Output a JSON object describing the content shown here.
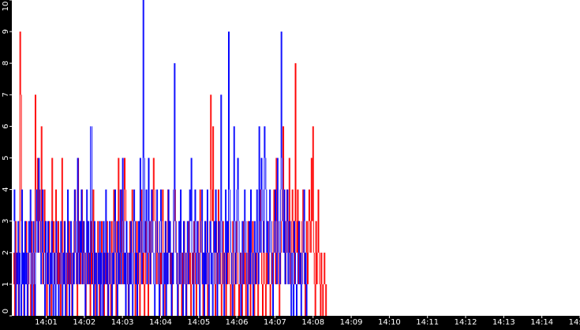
{
  "chart_data": {
    "type": "line",
    "title": "",
    "xlabel": "",
    "ylabel": "",
    "ylim": [
      0,
      10
    ],
    "y_ticks": [
      "0",
      "1",
      "2",
      "3",
      "4",
      "5",
      "6",
      "7",
      "8",
      "9",
      "10"
    ],
    "x_ticks": [
      "14:01",
      "14:02",
      "14:03",
      "14:04",
      "14:05",
      "14:06",
      "14:07",
      "14:08",
      "14:09",
      "14:10",
      "14:11",
      "14:12",
      "14:13",
      "14:14",
      "14:15"
    ],
    "x_tick_minutes": [
      1,
      2,
      3,
      4,
      5,
      6,
      7,
      8,
      9,
      10,
      11,
      12,
      13,
      14,
      15
    ],
    "x_range_minutes": [
      0.1,
      15.0
    ],
    "grid": false,
    "legend": "none",
    "colors": {
      "background": "#000000",
      "plot_background": "#ffffff",
      "text": "#ffffff",
      "series_a": "#ff0000",
      "series_b": "#0000ff"
    },
    "series": [
      {
        "color": "#ff0000",
        "x_start_minute": 0.12,
        "x_step_minutes": 0.02,
        "values": [
          1,
          2,
          0,
          3,
          1,
          2,
          1,
          0,
          2,
          9,
          7,
          3,
          1,
          2,
          0,
          1,
          2,
          3,
          1,
          0,
          2,
          1,
          1,
          0,
          3,
          2,
          1,
          0,
          2,
          7,
          4,
          3,
          5,
          2,
          4,
          3,
          2,
          6,
          3,
          1,
          2,
          4,
          2,
          1,
          0,
          2,
          1,
          3,
          2,
          1,
          0,
          5,
          2,
          3,
          1,
          2,
          4,
          2,
          1,
          3,
          1,
          2,
          0,
          1,
          5,
          2,
          1,
          3,
          2,
          1,
          0,
          2,
          1,
          3,
          1,
          2,
          1,
          0,
          2,
          1,
          3,
          4,
          2,
          1,
          0,
          5,
          2,
          3,
          1,
          2,
          4,
          1,
          3,
          2,
          1,
          0,
          2,
          3,
          1,
          2,
          1,
          0,
          3,
          1,
          2,
          4,
          1,
          2,
          0,
          1,
          2,
          3,
          1,
          0,
          2,
          1,
          3,
          2,
          1,
          0,
          1,
          2,
          1,
          3,
          0,
          1,
          2,
          1,
          0,
          3,
          2,
          1,
          4,
          2,
          1,
          0,
          3,
          2,
          5,
          3,
          1,
          2,
          4,
          2,
          1,
          3,
          5,
          4,
          3,
          2,
          1,
          0,
          2,
          3,
          1,
          2,
          4,
          3,
          2,
          1,
          0,
          2,
          3,
          1,
          2,
          1,
          0,
          3,
          4,
          2,
          1,
          2,
          0,
          1,
          3,
          2,
          1,
          0,
          2,
          3,
          1,
          2,
          4,
          3,
          5,
          4,
          3,
          2,
          1,
          3,
          2,
          1,
          0,
          2,
          1,
          3,
          4,
          2,
          1,
          0,
          3,
          2,
          1,
          4,
          2,
          3,
          1,
          2,
          0,
          1,
          2,
          3,
          4,
          3,
          2,
          1,
          0,
          1,
          2,
          3,
          1,
          0,
          2,
          1,
          3,
          2,
          1,
          0,
          1,
          2,
          3,
          1,
          2,
          0,
          1,
          2,
          1,
          3,
          2,
          1,
          0,
          2,
          3,
          1,
          2,
          4,
          3,
          2,
          1,
          0,
          2,
          1,
          3,
          2,
          1,
          0,
          1,
          2,
          3,
          7,
          4,
          3,
          6,
          2,
          1,
          0,
          3,
          2,
          1,
          4,
          3,
          2,
          1,
          0,
          2,
          3,
          1,
          2,
          1,
          0,
          2,
          1,
          3,
          2,
          1,
          0,
          1,
          2,
          3,
          1,
          0,
          2,
          1,
          3,
          2,
          1,
          0,
          1,
          2,
          1,
          0,
          2,
          3,
          1,
          2,
          0,
          1,
          2,
          3,
          1,
          2,
          0,
          1,
          2,
          3,
          1,
          0,
          2,
          1,
          2,
          1,
          0,
          2,
          3,
          4,
          2,
          1,
          0,
          3,
          2,
          1,
          0,
          2,
          1,
          3,
          2,
          1,
          0,
          1,
          2,
          1,
          3,
          4,
          2,
          1,
          5,
          3,
          2,
          1,
          0,
          1,
          2,
          3,
          4,
          6,
          2,
          3,
          1,
          2,
          4,
          3,
          2,
          5,
          1,
          2,
          3,
          4,
          2,
          3,
          1,
          8,
          3,
          2,
          4,
          1,
          3,
          2,
          1,
          2,
          3,
          4,
          2,
          1,
          0,
          2,
          3,
          1,
          2,
          4,
          3,
          2,
          5,
          3,
          6,
          2,
          1,
          0,
          3,
          1,
          2,
          4,
          2,
          1,
          0,
          2,
          1,
          0,
          1,
          2,
          1,
          0,
          1
        ],
        "color_name": "red"
      },
      {
        "color": "#0000ff",
        "x_start_minute": 0.13,
        "x_step_minutes": 0.02,
        "values": [
          3,
          4,
          1,
          0,
          2,
          1,
          3,
          0,
          2,
          1,
          0,
          4,
          1,
          2,
          0,
          3,
          1,
          2,
          0,
          1,
          3,
          2,
          4,
          1,
          0,
          2,
          3,
          1,
          0,
          2,
          4,
          3,
          2,
          5,
          4,
          3,
          1,
          2,
          4,
          2,
          1,
          0,
          3,
          2,
          1,
          3,
          1,
          0,
          2,
          1,
          3,
          1,
          0,
          2,
          1,
          0,
          3,
          2,
          1,
          0,
          1,
          2,
          3,
          1,
          0,
          2,
          1,
          3,
          0,
          1,
          2,
          4,
          1,
          0,
          2,
          3,
          1,
          0,
          2,
          1,
          4,
          3,
          2,
          1,
          5,
          2,
          1,
          3,
          2,
          4,
          1,
          2,
          3,
          1,
          0,
          2,
          4,
          1,
          3,
          2,
          1,
          6,
          6,
          2,
          1,
          0,
          3,
          1,
          2,
          0,
          1,
          2,
          1,
          3,
          0,
          2,
          1,
          0,
          3,
          1,
          2,
          4,
          1,
          2,
          0,
          1,
          3,
          2,
          1,
          0,
          2,
          1,
          3,
          4,
          2,
          1,
          0,
          3,
          1,
          2,
          4,
          1,
          2,
          5,
          3,
          1,
          2,
          0,
          3,
          2,
          1,
          0,
          2,
          1,
          3,
          1,
          0,
          2,
          4,
          3,
          1,
          2,
          0,
          1,
          3,
          2,
          5,
          3,
          1,
          2,
          10,
          5,
          2,
          3,
          4,
          1,
          2,
          5,
          3,
          1,
          2,
          4,
          3,
          2,
          1,
          0,
          2,
          3,
          4,
          2,
          1,
          0,
          3,
          4,
          2,
          1,
          0,
          2,
          1,
          3,
          0,
          2,
          1,
          4,
          2,
          3,
          1,
          0,
          2,
          1,
          4,
          8,
          3,
          2,
          1,
          0,
          2,
          3,
          1,
          4,
          2,
          1,
          0,
          3,
          2,
          1,
          0,
          2,
          3,
          1,
          2,
          4,
          3,
          5,
          2,
          1,
          0,
          3,
          4,
          2,
          1,
          3,
          2,
          1,
          0,
          2,
          3,
          4,
          1,
          2,
          0,
          3,
          1,
          2,
          4,
          1,
          0,
          2,
          3,
          1,
          2,
          0,
          1,
          3,
          2,
          4,
          1,
          0,
          2,
          3,
          1,
          2,
          7,
          3,
          2,
          1,
          0,
          2,
          4,
          1,
          3,
          2,
          9,
          4,
          3,
          2,
          1,
          0,
          2,
          6,
          3,
          1,
          2,
          4,
          5,
          3,
          2,
          1,
          0,
          2,
          3,
          1,
          2,
          4,
          3,
          2,
          1,
          0,
          2,
          3,
          1,
          4,
          2,
          1,
          0,
          2,
          3,
          1,
          2,
          4,
          2,
          1,
          6,
          3,
          2,
          5,
          4,
          3,
          2,
          6,
          5,
          4,
          2,
          3,
          1,
          2,
          4,
          3,
          2,
          1,
          0,
          2,
          3,
          4,
          2,
          1,
          5,
          3,
          2,
          1,
          4,
          9,
          5,
          3,
          2,
          4,
          1,
          2,
          3,
          4,
          1,
          2,
          3,
          1,
          0,
          2,
          1,
          0,
          3,
          2,
          1,
          0,
          1,
          2,
          3,
          1,
          2,
          0,
          1,
          2,
          3,
          4,
          1,
          2,
          0,
          1
        ],
        "color_name": "blue"
      }
    ]
  }
}
